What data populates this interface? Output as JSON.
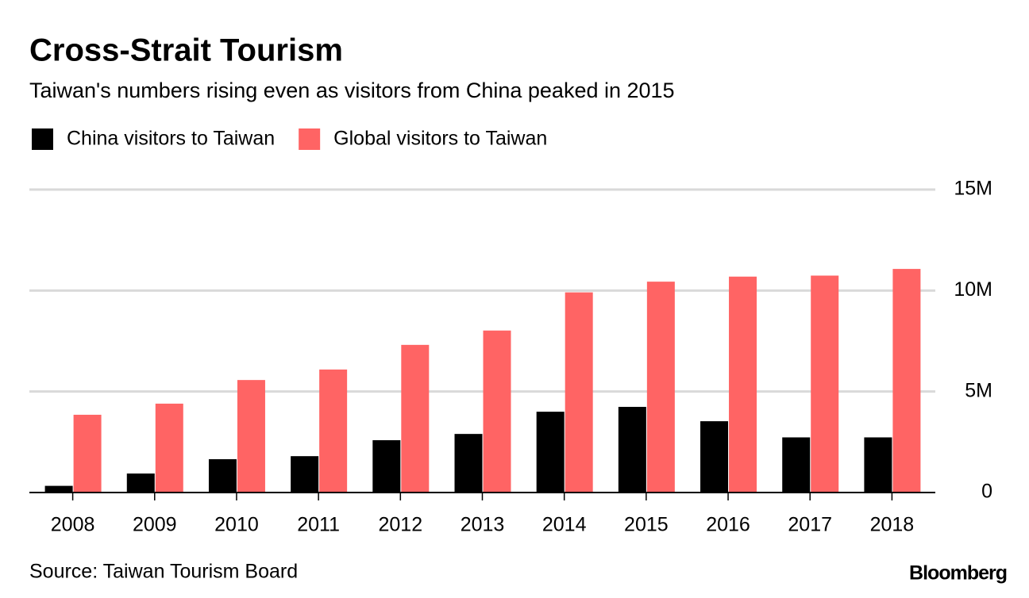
{
  "chart_data": {
    "type": "bar",
    "title": "Cross-Strait Tourism",
    "subtitle": "Taiwan's numbers rising even as visitors from China peaked in 2015",
    "source": "Source: Taiwan Tourism Board",
    "brand": "Bloomberg",
    "categories": [
      "2008",
      "2009",
      "2010",
      "2011",
      "2012",
      "2013",
      "2014",
      "2015",
      "2016",
      "2017",
      "2018"
    ],
    "series": [
      {
        "name": "China visitors to Taiwan",
        "color": "#000000",
        "values": [
          0.33,
          0.94,
          1.65,
          1.8,
          2.59,
          2.9,
          4.0,
          4.24,
          3.53,
          2.73,
          2.73
        ]
      },
      {
        "name": "Global visitors to Taiwan",
        "color": "#ff6464",
        "values": [
          3.85,
          4.4,
          5.57,
          6.09,
          7.31,
          8.02,
          9.91,
          10.44,
          10.69,
          10.74,
          11.07
        ]
      }
    ],
    "ylim": [
      0,
      15
    ],
    "yticks": [
      0,
      {
        "value": 5,
        "label": "5M"
      },
      {
        "value": 10,
        "label": "10M"
      },
      {
        "value": 15,
        "label": "15M"
      }
    ],
    "grid": true
  }
}
